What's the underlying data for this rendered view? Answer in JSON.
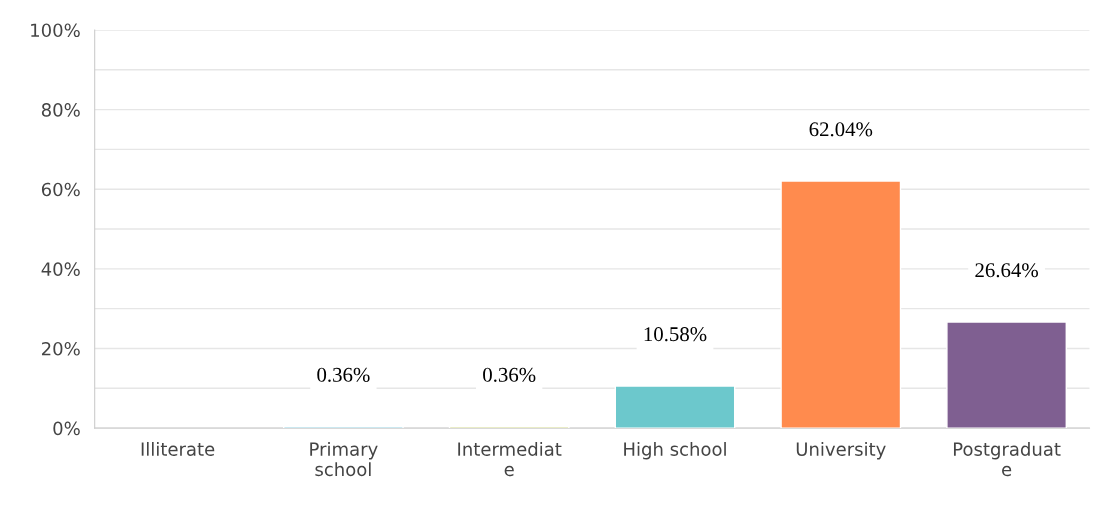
{
  "chart_data": {
    "type": "bar",
    "categories": [
      "Illiterate",
      "Primary\nschool",
      "Intermediat\ne",
      "High school",
      "University",
      "Postgraduat\ne"
    ],
    "values": [
      null,
      0.36,
      0.36,
      10.58,
      62.04,
      26.64
    ],
    "colors": [
      null,
      "#2ca0c1",
      "#a6b11f",
      "#6cc8cc",
      "#ff8b4e",
      "#7f5f91"
    ],
    "value_labels": [
      null,
      "0.36%",
      "0.36%",
      "10.58%",
      "62.04%",
      "26.64%"
    ],
    "ylim": [
      0,
      100
    ],
    "yticks": [
      {
        "value": 0,
        "label": "0%"
      },
      {
        "value": 10,
        "label": null
      },
      {
        "value": 20,
        "label": "20%"
      },
      {
        "value": 30,
        "label": null
      },
      {
        "value": 40,
        "label": "40%"
      },
      {
        "value": 50,
        "label": null
      },
      {
        "value": 60,
        "label": "60%"
      },
      {
        "value": 70,
        "label": null
      },
      {
        "value": 80,
        "label": "80%"
      },
      {
        "value": 90,
        "label": null
      },
      {
        "value": 100,
        "label": "100%"
      }
    ],
    "grid": "y"
  }
}
